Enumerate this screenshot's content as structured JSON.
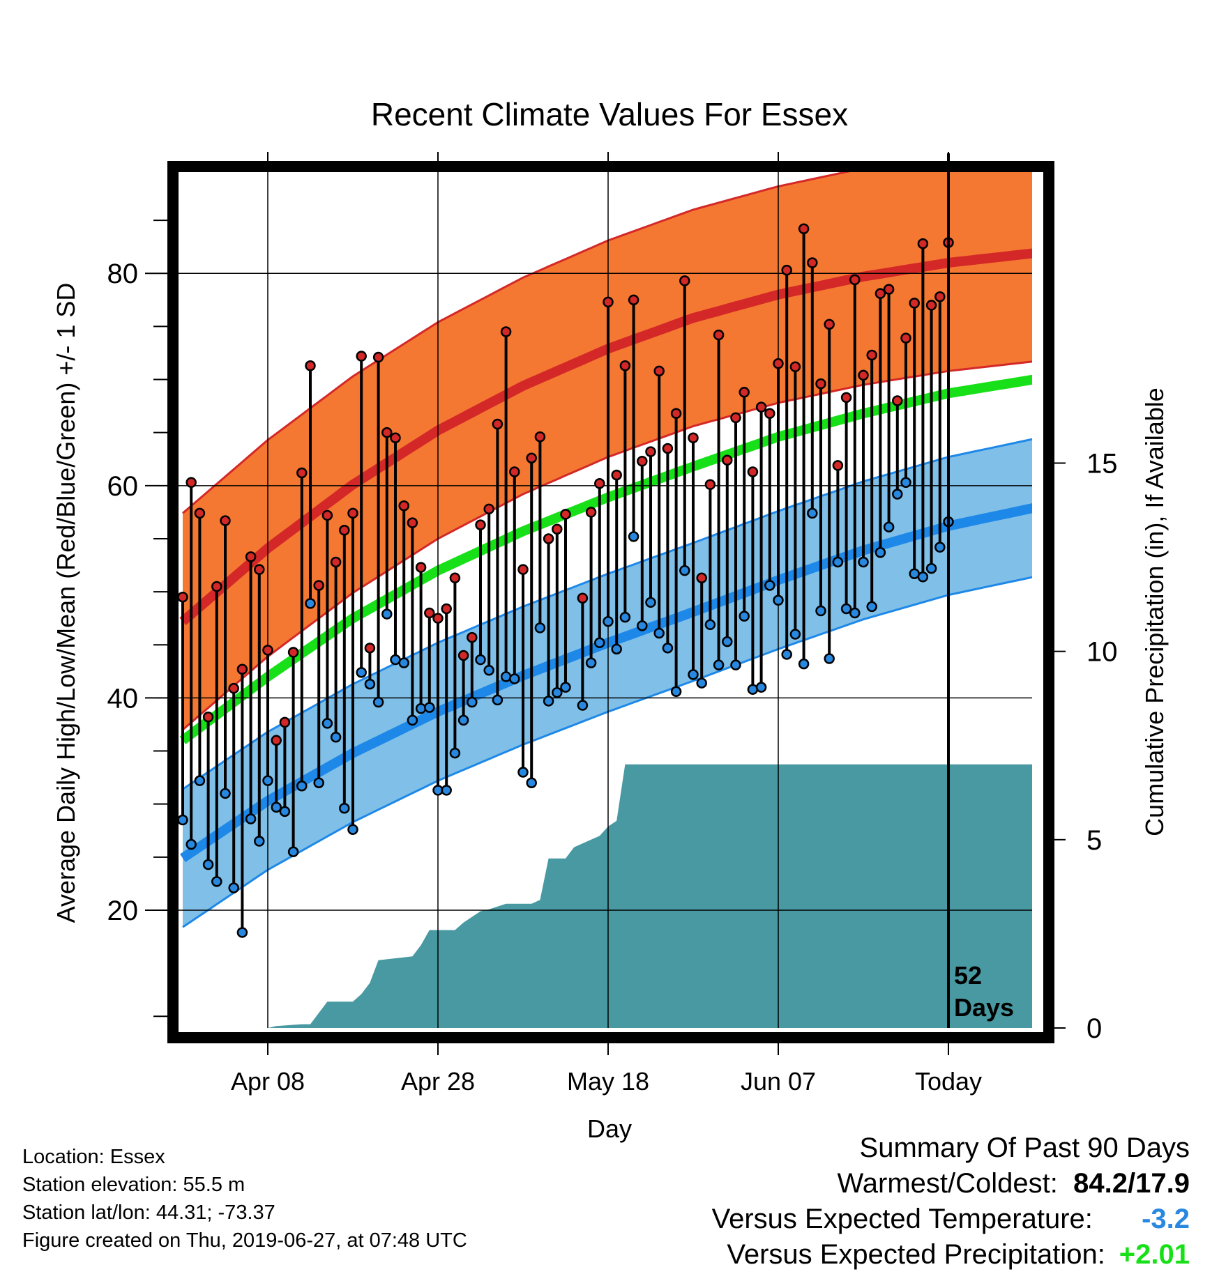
{
  "chart_data": {
    "type": "line",
    "title": "Recent Climate Values For Essex",
    "xlabel": "Day",
    "ylabel": "Average Daily High/Low/Mean (Red/Blue/Green) +/- 1 SD",
    "y2label": "Cumulative Precipitation (in), If Available",
    "x_tick_labels": [
      "Apr 08",
      "Apr 28",
      "May 18",
      "Jun 07",
      "Today"
    ],
    "x_tick_days": [
      10,
      30,
      50,
      70,
      90
    ],
    "xlim": [
      0,
      100
    ],
    "ylim": [
      8.9,
      89.8
    ],
    "y_ticks": [
      20,
      40,
      60,
      80
    ],
    "y2lim": [
      0,
      22.8
    ],
    "y2_ticks": [
      0,
      5,
      10,
      15
    ],
    "today_day": 90,
    "today_label": "52\nDays",
    "grid": true,
    "colors": {
      "high_band": "#f47832",
      "high_mean": "#d42828",
      "low_band": "#80c0e8",
      "low_mean": "#1e88e8",
      "mean": "#18e018",
      "precip": "#4899a2",
      "high_dot": "#d42828",
      "low_dot": "#2888e0"
    },
    "normals": {
      "day": [
        0,
        10,
        20,
        30,
        40,
        50,
        60,
        70,
        80,
        90,
        100
      ],
      "high": [
        47.2,
        54.1,
        60.1,
        65.2,
        69.4,
        72.9,
        75.8,
        78.0,
        79.7,
        81.0,
        81.9
      ],
      "high_sd": 10.2,
      "low": [
        24.9,
        30.3,
        34.8,
        38.7,
        42.1,
        45.2,
        48.1,
        51.1,
        53.9,
        56.2,
        57.9
      ],
      "low_sd": 6.5,
      "mean": [
        36.0,
        42.0,
        47.5,
        52.0,
        55.7,
        58.9,
        61.8,
        64.6,
        66.8,
        68.7,
        70.0
      ]
    },
    "series": [
      {
        "name": "High",
        "values": [
          49.5,
          60.3,
          57.4,
          38.2,
          50.5,
          56.7,
          40.9,
          42.7,
          53.3,
          52.1,
          44.5,
          36.0,
          37.7,
          44.3,
          61.2,
          71.3,
          50.6,
          57.2,
          52.8,
          55.8,
          57.4,
          72.2,
          44.7,
          72.1,
          65.0,
          64.5,
          58.1,
          56.5,
          52.3,
          48.0,
          47.5,
          48.4,
          51.3,
          44.0,
          45.7,
          56.3,
          57.8,
          65.8,
          74.5,
          61.3,
          52.1,
          62.6,
          64.6,
          55.0,
          55.9,
          57.3,
          null,
          49.4,
          57.5,
          60.2,
          77.3,
          61.0,
          71.3,
          77.5,
          62.3,
          63.2,
          70.8,
          63.5,
          66.8,
          79.3,
          64.5,
          51.3,
          60.1,
          74.2,
          62.4,
          66.4,
          68.8,
          61.3,
          67.4,
          66.8,
          71.5,
          80.3,
          71.2,
          84.2,
          81.0,
          69.6,
          75.2,
          61.9,
          68.3,
          79.4,
          70.4,
          72.3,
          78.1,
          78.5,
          68.0,
          73.9,
          77.2,
          82.8,
          77.0,
          77.8,
          82.9
        ]
      },
      {
        "name": "Low",
        "values": [
          28.5,
          26.2,
          32.2,
          24.3,
          22.7,
          31.0,
          22.1,
          17.9,
          28.6,
          26.5,
          32.2,
          29.7,
          29.3,
          25.5,
          31.7,
          48.9,
          32.0,
          37.6,
          36.3,
          29.6,
          27.6,
          42.4,
          41.3,
          39.6,
          47.9,
          43.6,
          43.3,
          37.9,
          39.0,
          39.1,
          31.3,
          31.3,
          34.8,
          37.9,
          39.6,
          43.6,
          42.6,
          39.8,
          42.0,
          41.8,
          33.0,
          32.0,
          46.6,
          39.7,
          40.5,
          41.0,
          null,
          39.3,
          43.3,
          45.2,
          47.2,
          44.6,
          47.6,
          55.2,
          46.8,
          49.0,
          46.1,
          44.7,
          40.6,
          52.0,
          42.2,
          41.4,
          46.9,
          43.1,
          45.3,
          43.1,
          47.7,
          40.8,
          41.0,
          50.6,
          49.2,
          44.1,
          46.0,
          43.2,
          57.4,
          48.2,
          43.7,
          52.8,
          48.4,
          48.0,
          52.8,
          48.6,
          53.7,
          56.1,
          59.2,
          60.3,
          51.7,
          51.4,
          52.2,
          54.2,
          56.6
        ]
      }
    ],
    "precip": {
      "day": [
        0,
        10,
        11,
        14,
        15,
        16,
        17,
        20,
        21,
        22,
        23,
        27,
        28,
        29,
        32,
        33,
        35,
        36,
        38,
        41,
        42,
        43,
        45,
        46,
        48,
        49,
        50,
        51,
        52,
        56,
        60,
        90,
        100
      ],
      "cum": [
        0,
        0,
        0.05,
        0.1,
        0.1,
        0.4,
        0.7,
        0.7,
        0.9,
        1.2,
        1.8,
        1.9,
        2.2,
        2.6,
        2.6,
        2.8,
        3.1,
        3.15,
        3.3,
        3.3,
        3.4,
        4.5,
        4.5,
        4.8,
        5.0,
        5.1,
        5.35,
        5.5,
        7.0,
        7.0,
        7.0,
        7.0,
        7.0
      ]
    }
  },
  "info": {
    "location": "Location: Essex",
    "elevation": "Station elevation: 55.5 m",
    "latlon": "Station lat/lon: 44.31; -73.37",
    "created": "Figure created on Thu, 2019-06-27, at 07:48 UTC"
  },
  "summary": {
    "heading": "Summary Of Past 90 Days",
    "warm_cold_label": "Warmest/Coldest:",
    "warm_cold_value": "84.2/17.9",
    "temp_label": "Versus Expected Temperature:",
    "temp_value": "-3.2",
    "temp_color": "#2888e0",
    "precip_label": "Versus Expected Precipitation:",
    "precip_value": "+2.01",
    "precip_color": "#18e018"
  }
}
